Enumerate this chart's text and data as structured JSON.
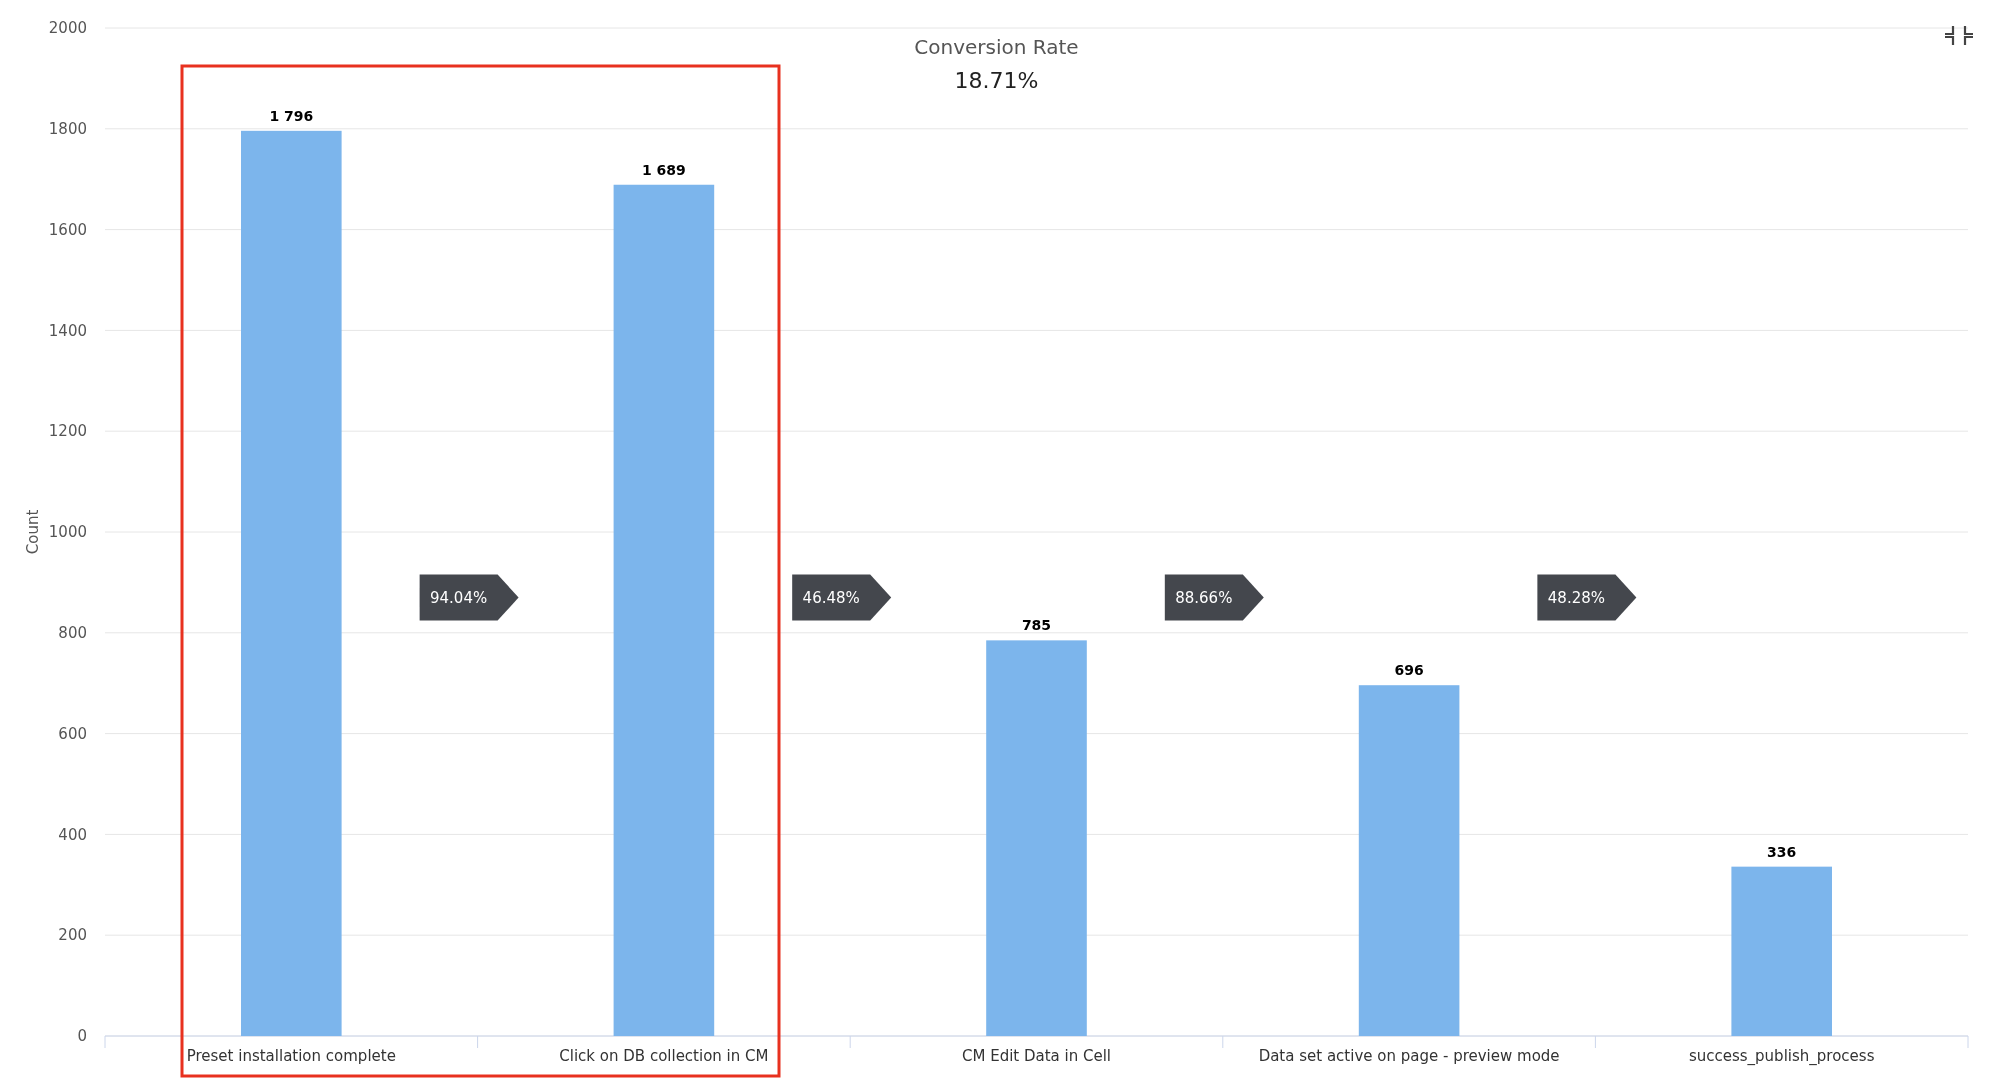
{
  "chart_data": {
    "type": "bar",
    "title": "Conversion Rate",
    "subtitle": "18.71%",
    "ylabel": "Count",
    "categories": [
      "Preset installation complete",
      "Click on DB collection in CM",
      "CM Edit Data in Cell",
      "Data set active on page - preview mode",
      "success_publish_process"
    ],
    "values": [
      1796,
      1689,
      785,
      696,
      336
    ],
    "value_labels": [
      "1 796",
      "1 689",
      "785",
      "696",
      "336"
    ],
    "color": "#7cb5ec",
    "ylim": [
      0,
      2000
    ],
    "yticks": [
      0,
      200,
      400,
      600,
      800,
      1000,
      1200,
      1400,
      1600,
      1800,
      2000
    ],
    "grid": "y",
    "annotations": [
      "94.04%",
      "46.48%",
      "88.66%",
      "48.28%"
    ]
  }
}
